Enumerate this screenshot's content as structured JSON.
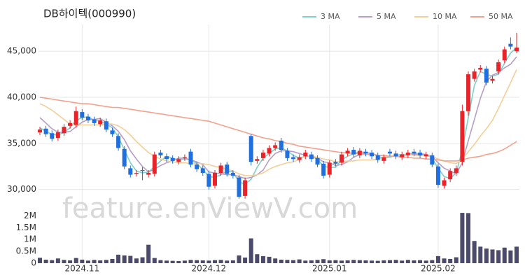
{
  "chart_data": {
    "type": "candlestick",
    "title": "DB하이텍(000990)",
    "watermark": "feature.enViewV.com",
    "categories": [
      null,
      null,
      null,
      null,
      null,
      null,
      null,
      "2024.11",
      null,
      null,
      null,
      null,
      null,
      null,
      null,
      null,
      null,
      null,
      null,
      null,
      null,
      null,
      null,
      null,
      null,
      null,
      null,
      null,
      "2024.12",
      null,
      null,
      null,
      null,
      null,
      null,
      null,
      null,
      null,
      null,
      null,
      null,
      null,
      null,
      null,
      null,
      null,
      null,
      null,
      "2025.01",
      null,
      null,
      null,
      null,
      null,
      null,
      null,
      null,
      null,
      null,
      null,
      null,
      null,
      null,
      null,
      null,
      null,
      "2025.02",
      null,
      null,
      null,
      null,
      null,
      null,
      null,
      null,
      null,
      null,
      null,
      null,
      null
    ],
    "open": [
      36200,
      36600,
      36100,
      35600,
      36100,
      36900,
      37000,
      38400,
      37900,
      37600,
      37100,
      37400,
      36400,
      35800,
      34400,
      32300,
      31700,
      32100,
      31600,
      31700,
      34000,
      33600,
      33400,
      33000,
      33400,
      34100,
      32700,
      32300,
      31700,
      30400,
      31800,
      32700,
      31800,
      31300,
      29300,
      35800,
      33100,
      33400,
      33900,
      34500,
      35300,
      34200,
      33500,
      33200,
      33600,
      33800,
      33400,
      32800,
      31600,
      33000,
      32900,
      33900,
      34300,
      33700,
      34100,
      34000,
      33700,
      33100,
      34100,
      33900,
      33500,
      33700,
      34100,
      34000,
      33600,
      33700,
      32500,
      30400,
      31100,
      31800,
      33000,
      38500,
      42000,
      43000,
      43100,
      41800,
      42800,
      44000,
      45800,
      45000
    ],
    "high": [
      36800,
      36900,
      36400,
      36500,
      37100,
      37500,
      39000,
      38700,
      38200,
      37900,
      37800,
      37700,
      36700,
      36100,
      34700,
      32600,
      32100,
      32400,
      32100,
      34100,
      34300,
      33900,
      33700,
      33600,
      33800,
      34400,
      33000,
      32600,
      32000,
      32100,
      32900,
      33000,
      32100,
      31600,
      31300,
      36000,
      33600,
      34300,
      34800,
      35100,
      35600,
      34500,
      33800,
      33800,
      34300,
      34100,
      33700,
      33100,
      33200,
      33300,
      34100,
      34500,
      34600,
      34500,
      34400,
      34300,
      34000,
      33800,
      34400,
      34200,
      34100,
      34300,
      34400,
      34300,
      34100,
      34000,
      32800,
      31300,
      32300,
      32600,
      39200,
      42800,
      43100,
      43500,
      43400,
      42300,
      44100,
      45500,
      46500,
      47000
    ],
    "low": [
      35900,
      35700,
      35200,
      35300,
      35800,
      36600,
      36700,
      37500,
      37200,
      36900,
      36800,
      36200,
      35700,
      34200,
      32200,
      31300,
      31400,
      31000,
      31300,
      31400,
      33400,
      33000,
      32800,
      32700,
      33100,
      32400,
      31900,
      31500,
      30000,
      30100,
      31500,
      31400,
      31200,
      29000,
      29000,
      32600,
      32800,
      33100,
      33600,
      34200,
      34000,
      33100,
      33000,
      32900,
      33300,
      33000,
      32400,
      31200,
      31300,
      32500,
      32600,
      33600,
      33500,
      33400,
      33600,
      33300,
      32900,
      32800,
      33600,
      33300,
      33200,
      33400,
      33600,
      33400,
      33300,
      32400,
      30200,
      30100,
      30800,
      31500,
      32600,
      38000,
      41700,
      42700,
      41300,
      41500,
      42500,
      43700,
      45200,
      44800
    ],
    "close": [
      36500,
      36000,
      35500,
      36200,
      36800,
      37200,
      38500,
      37800,
      37500,
      37200,
      37500,
      36500,
      36000,
      34500,
      32500,
      31600,
      31800,
      32000,
      31800,
      33800,
      33700,
      33300,
      33100,
      33300,
      33500,
      32700,
      32200,
      31800,
      30300,
      31800,
      32600,
      31700,
      31500,
      29200,
      31000,
      33000,
      33300,
      34000,
      34500,
      34800,
      34300,
      33400,
      33300,
      33500,
      34000,
      33300,
      32700,
      31500,
      32900,
      32800,
      33800,
      34200,
      33800,
      34200,
      33900,
      33600,
      33200,
      33500,
      33900,
      33600,
      33800,
      34000,
      33900,
      33700,
      33800,
      32700,
      30500,
      31000,
      32000,
      32300,
      38500,
      42500,
      42800,
      43200,
      41600,
      42000,
      43800,
      45200,
      45500,
      45400
    ],
    "up_color": "#e8242a",
    "down_color": "#1f6fe0",
    "series": [
      {
        "name": "3 MA",
        "color": "#7fd0c8",
        "values": [
          36700,
          36300,
          36000,
          35900,
          36200,
          36700,
          37500,
          37800,
          37900,
          37500,
          37400,
          37100,
          36700,
          35700,
          34300,
          32900,
          32000,
          31800,
          31900,
          32500,
          33100,
          33600,
          33400,
          33200,
          33300,
          33200,
          32800,
          32200,
          31400,
          31300,
          31600,
          32000,
          31900,
          30800,
          30600,
          31100,
          32400,
          33400,
          33900,
          34400,
          34500,
          34200,
          33700,
          33400,
          33600,
          33600,
          33300,
          32500,
          32400,
          32400,
          33200,
          33600,
          33900,
          34100,
          34000,
          33900,
          33600,
          33400,
          33500,
          33700,
          33800,
          33800,
          33900,
          33900,
          33800,
          33400,
          32300,
          31400,
          31200,
          31800,
          34300,
          37800,
          41300,
          42800,
          42500,
          42300,
          42500,
          43700,
          44800,
          45400
        ]
      },
      {
        "name": "5 MA",
        "color": "#b59fc6",
        "values": [
          37800,
          37200,
          36600,
          36200,
          36200,
          36300,
          36800,
          37300,
          37600,
          37600,
          37700,
          37300,
          36900,
          36300,
          35400,
          34200,
          33300,
          32500,
          31900,
          32200,
          32600,
          32900,
          33100,
          33400,
          33400,
          33200,
          33000,
          32700,
          31900,
          31800,
          31700,
          31600,
          31600,
          31400,
          31200,
          31300,
          31600,
          32100,
          33200,
          33900,
          34200,
          34200,
          34100,
          33900,
          33700,
          33500,
          33400,
          33000,
          32900,
          32600,
          32700,
          33000,
          33500,
          33800,
          34000,
          33900,
          33700,
          33700,
          33600,
          33600,
          33600,
          33800,
          33800,
          33800,
          33800,
          33600,
          32900,
          32300,
          32000,
          31700,
          32900,
          35300,
          37600,
          39900,
          41700,
          42400,
          42700,
          43200,
          43600,
          44400
        ]
      },
      {
        "name": "10 MA",
        "color": "#f3cf98",
        "values": [
          39300,
          39000,
          38600,
          38100,
          37600,
          37100,
          37000,
          37000,
          37000,
          37000,
          37000,
          37100,
          37100,
          36900,
          36500,
          35900,
          35200,
          34600,
          34000,
          33600,
          33300,
          33100,
          33000,
          32900,
          32900,
          32800,
          32800,
          32800,
          32700,
          32500,
          32400,
          32200,
          32000,
          31700,
          31500,
          31500,
          31600,
          31800,
          32200,
          32500,
          32700,
          32900,
          33000,
          33300,
          33600,
          33600,
          33500,
          33300,
          33200,
          33000,
          33000,
          33100,
          33100,
          33200,
          33200,
          33200,
          33300,
          33500,
          33600,
          33700,
          33700,
          33800,
          33700,
          33700,
          33700,
          33600,
          33300,
          33100,
          32900,
          32800,
          33300,
          34100,
          34900,
          35800,
          36600,
          37500,
          38800,
          40200,
          41600,
          43000
        ]
      },
      {
        "name": "50 MA",
        "color": "#f4a28d",
        "values": [
          40000,
          39900,
          39800,
          39700,
          39600,
          39500,
          39400,
          39300,
          39300,
          39200,
          39100,
          39000,
          38900,
          38900,
          38800,
          38700,
          38600,
          38500,
          38400,
          38300,
          38200,
          38100,
          38000,
          37900,
          37800,
          37700,
          37600,
          37500,
          37400,
          37200,
          37000,
          36800,
          36600,
          36400,
          36200,
          36000,
          35800,
          35600,
          35500,
          35300,
          35200,
          35000,
          34900,
          34700,
          34600,
          34500,
          34400,
          34300,
          34200,
          34100,
          34000,
          34000,
          33900,
          33900,
          33800,
          33800,
          33700,
          33700,
          33600,
          33600,
          33500,
          33500,
          33400,
          33400,
          33300,
          33300,
          33200,
          33100,
          33100,
          33100,
          33200,
          33400,
          33500,
          33600,
          33800,
          33900,
          34100,
          34400,
          34800,
          35200
        ]
      }
    ],
    "ylim": [
      28000,
      47900
    ],
    "yticks": [
      {
        "value": 30000,
        "label": "30,000"
      },
      {
        "value": 35000,
        "label": "35,000"
      },
      {
        "value": 40000,
        "label": "40,000"
      },
      {
        "value": 45000,
        "label": "45,000"
      }
    ],
    "grid": true,
    "volume": {
      "color": "#4b4a6b",
      "values": [
        230000,
        150000,
        130000,
        200000,
        140000,
        120000,
        220000,
        150000,
        110000,
        140000,
        120000,
        140000,
        180000,
        360000,
        330000,
        310000,
        200000,
        250000,
        780000,
        220000,
        130000,
        110000,
        100000,
        90000,
        110000,
        140000,
        130000,
        120000,
        110000,
        130000,
        140000,
        110000,
        120000,
        330000,
        240000,
        1050000,
        380000,
        300000,
        270000,
        200000,
        150000,
        140000,
        130000,
        160000,
        110000,
        120000,
        140000,
        170000,
        120000,
        130000,
        110000,
        120000,
        140000,
        130000,
        120000,
        110000,
        100000,
        120000,
        130000,
        140000,
        110000,
        140000,
        120000,
        130000,
        110000,
        130000,
        300000,
        200000,
        180000,
        250000,
        2130000,
        2120000,
        940000,
        700000,
        620000,
        580000,
        550000,
        660000,
        540000,
        700000
      ],
      "ylim": [
        0,
        2250000
      ],
      "yticks": [
        0,
        {
          "value": 500000,
          "label": "0.5M"
        },
        {
          "value": 1000000,
          "label": "1M"
        },
        {
          "value": 1500000,
          "label": "1.5M"
        },
        {
          "value": 2000000,
          "label": "2M"
        }
      ]
    }
  }
}
